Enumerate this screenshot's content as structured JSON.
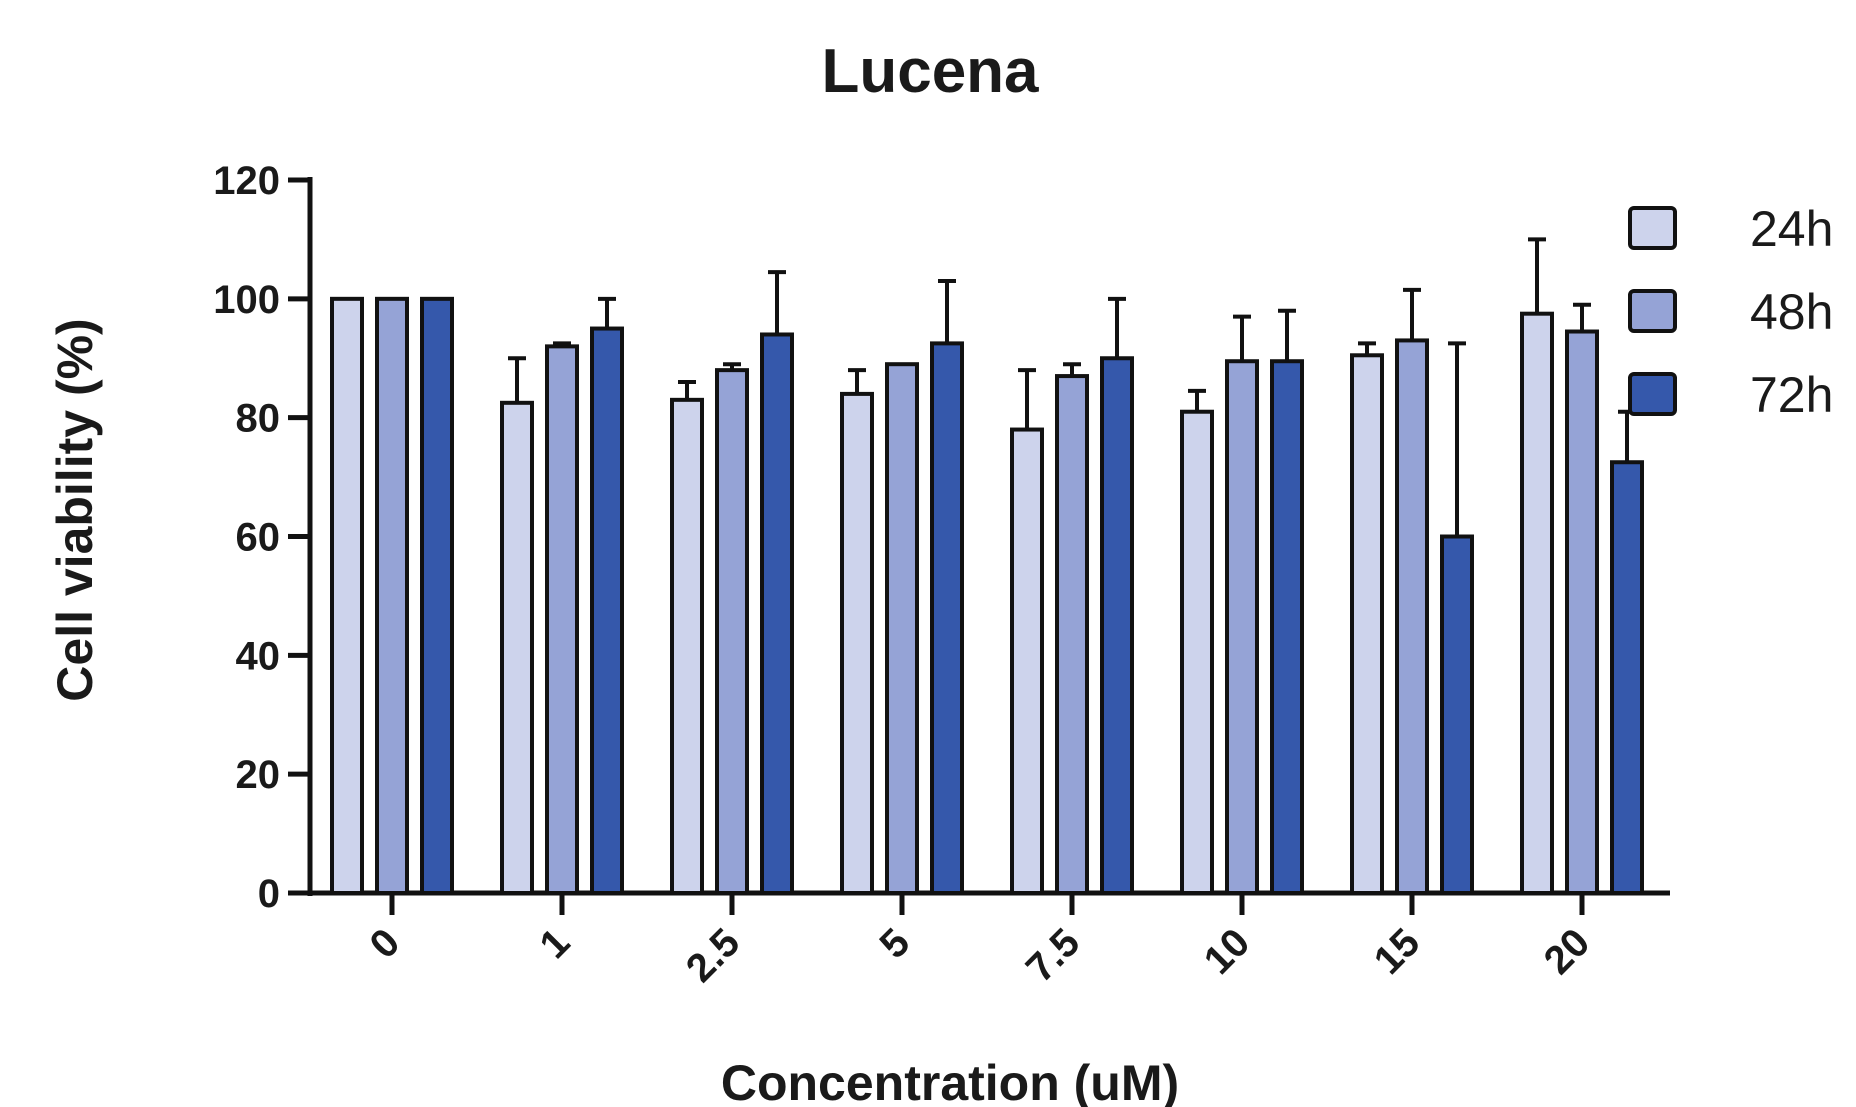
{
  "chart_data": {
    "type": "bar",
    "title": "Lucena",
    "xlabel": "Concentration (uM)",
    "ylabel": "Cell viability (%)",
    "categories": [
      "0",
      "1",
      "2.5",
      "5",
      "7.5",
      "10",
      "15",
      "20"
    ],
    "ylim": [
      0,
      120
    ],
    "yticks": [
      0,
      20,
      40,
      60,
      80,
      100,
      120
    ],
    "grid": false,
    "legend_position": "top-right",
    "series": [
      {
        "name": "24h",
        "color": "#cdd3ec",
        "values": [
          100,
          82.5,
          83,
          84,
          78,
          81,
          90.5,
          97.5
        ],
        "errors": [
          0,
          7.5,
          3,
          4,
          10,
          3.5,
          2,
          12.5
        ]
      },
      {
        "name": "48h",
        "color": "#95a3d6",
        "values": [
          100,
          92,
          88,
          89,
          87,
          89.5,
          93,
          94.5
        ],
        "errors": [
          0,
          0.5,
          1,
          0,
          2,
          7.5,
          8.5,
          4.5
        ]
      },
      {
        "name": "72h",
        "color": "#3558ab",
        "values": [
          100,
          95,
          94,
          92.5,
          90,
          89.5,
          60,
          72.5
        ],
        "errors": [
          0,
          5,
          10.5,
          10.5,
          10,
          8.5,
          32.5,
          8.5
        ]
      }
    ]
  }
}
